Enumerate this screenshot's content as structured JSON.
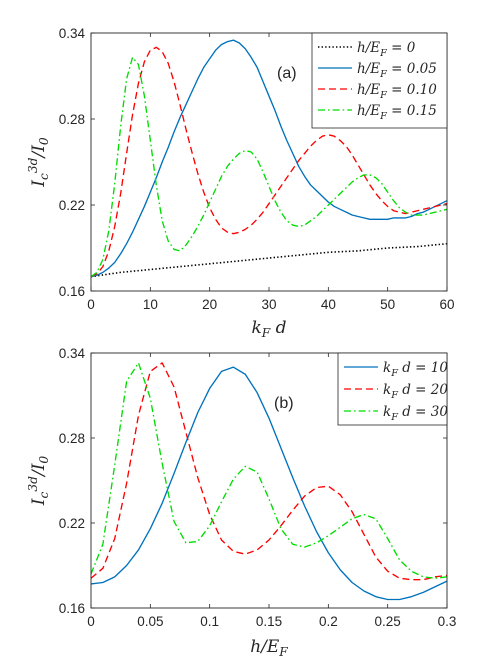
{
  "chart_data": [
    {
      "type": "line",
      "panel_label": "(a)",
      "xlabel": "k_F d",
      "ylabel": "I_c^{3d}/I_0",
      "xlim": [
        0,
        60
      ],
      "ylim": [
        0.16,
        0.34
      ],
      "xticks": [
        0,
        10,
        20,
        30,
        40,
        50,
        60
      ],
      "yticks": [
        0.16,
        0.22,
        0.28,
        0.34
      ],
      "ytick_labels": [
        "0.16",
        "0.22",
        "0.28",
        "0.34"
      ],
      "grid": false,
      "legend_position": "top-right",
      "series": [
        {
          "name": "h/E_F = 0",
          "color": "#000000",
          "style": "dotted",
          "x": [
            0,
            5,
            10,
            15,
            20,
            25,
            30,
            35,
            40,
            45,
            50,
            55,
            60
          ],
          "y": [
            0.17,
            0.173,
            0.175,
            0.177,
            0.179,
            0.181,
            0.183,
            0.185,
            0.187,
            0.188,
            0.19,
            0.191,
            0.193
          ]
        },
        {
          "name": "h/E_F = 0.05",
          "color": "#0072BD",
          "style": "solid",
          "x": [
            0,
            1,
            2,
            3,
            4,
            5,
            6,
            7,
            8,
            9,
            10,
            11,
            12,
            13,
            14,
            15,
            16,
            17,
            18,
            19,
            20,
            21,
            22,
            23,
            24,
            25,
            26,
            27,
            28,
            29,
            30,
            31,
            32,
            33,
            34,
            35,
            36,
            37,
            38,
            39,
            40,
            41,
            42,
            43,
            44,
            45,
            46,
            47,
            48,
            49,
            50,
            51,
            52,
            53,
            54,
            55,
            56,
            57,
            58,
            59,
            60
          ],
          "y": [
            0.17,
            0.171,
            0.173,
            0.176,
            0.18,
            0.186,
            0.193,
            0.201,
            0.21,
            0.219,
            0.229,
            0.239,
            0.25,
            0.26,
            0.271,
            0.281,
            0.29,
            0.299,
            0.308,
            0.316,
            0.322,
            0.328,
            0.332,
            0.334,
            0.335,
            0.333,
            0.329,
            0.323,
            0.316,
            0.306,
            0.296,
            0.286,
            0.275,
            0.265,
            0.256,
            0.247,
            0.24,
            0.234,
            0.23,
            0.226,
            0.222,
            0.219,
            0.217,
            0.215,
            0.213,
            0.212,
            0.211,
            0.21,
            0.21,
            0.21,
            0.21,
            0.211,
            0.211,
            0.211,
            0.212,
            0.214,
            0.215,
            0.217,
            0.219,
            0.221,
            0.223
          ]
        },
        {
          "name": "h/E_F = 0.10",
          "color": "#FF0000",
          "style": "dashed",
          "x": [
            0,
            1,
            2,
            3,
            4,
            5,
            6,
            7,
            8,
            9,
            10,
            11,
            12,
            13,
            14,
            15,
            16,
            17,
            18,
            19,
            20,
            21,
            22,
            23,
            24,
            25,
            26,
            27,
            28,
            29,
            30,
            31,
            32,
            33,
            34,
            35,
            36,
            37,
            38,
            39,
            40,
            41,
            42,
            43,
            44,
            45,
            46,
            47,
            48,
            49,
            50,
            51,
            52,
            53,
            54,
            55,
            56,
            57,
            58,
            59,
            60
          ],
          "y": [
            0.17,
            0.172,
            0.177,
            0.188,
            0.205,
            0.228,
            0.256,
            0.283,
            0.305,
            0.32,
            0.328,
            0.33,
            0.327,
            0.319,
            0.306,
            0.29,
            0.273,
            0.257,
            0.242,
            0.229,
            0.218,
            0.21,
            0.204,
            0.201,
            0.2,
            0.201,
            0.203,
            0.206,
            0.21,
            0.215,
            0.221,
            0.227,
            0.233,
            0.239,
            0.245,
            0.251,
            0.256,
            0.261,
            0.265,
            0.268,
            0.269,
            0.268,
            0.265,
            0.261,
            0.255,
            0.248,
            0.241,
            0.234,
            0.228,
            0.223,
            0.219,
            0.216,
            0.215,
            0.214,
            0.215,
            0.216,
            0.217,
            0.218,
            0.219,
            0.22,
            0.221
          ]
        },
        {
          "name": "h/E_F = 0.15",
          "color": "#00DD00",
          "style": "dashdot",
          "x": [
            0,
            1,
            2,
            3,
            4,
            5,
            6,
            7,
            8,
            9,
            10,
            11,
            12,
            13,
            14,
            15,
            16,
            17,
            18,
            19,
            20,
            21,
            22,
            23,
            24,
            25,
            26,
            27,
            28,
            29,
            30,
            31,
            32,
            33,
            34,
            35,
            36,
            37,
            38,
            39,
            40,
            41,
            42,
            43,
            44,
            45,
            46,
            47,
            48,
            49,
            50,
            51,
            52,
            53,
            54,
            55,
            56,
            57,
            58,
            59,
            60
          ],
          "y": [
            0.17,
            0.173,
            0.182,
            0.202,
            0.235,
            0.275,
            0.308,
            0.323,
            0.318,
            0.296,
            0.265,
            0.234,
            0.209,
            0.195,
            0.189,
            0.188,
            0.192,
            0.198,
            0.205,
            0.213,
            0.222,
            0.231,
            0.24,
            0.247,
            0.252,
            0.256,
            0.258,
            0.257,
            0.252,
            0.243,
            0.233,
            0.223,
            0.215,
            0.209,
            0.206,
            0.205,
            0.206,
            0.209,
            0.212,
            0.216,
            0.22,
            0.224,
            0.228,
            0.232,
            0.236,
            0.239,
            0.241,
            0.241,
            0.239,
            0.235,
            0.229,
            0.223,
            0.218,
            0.215,
            0.213,
            0.213,
            0.213,
            0.214,
            0.215,
            0.216,
            0.217
          ]
        }
      ]
    },
    {
      "type": "line",
      "panel_label": "(b)",
      "xlabel": "h/E_F",
      "ylabel": "I_c^{3d}/I_0",
      "xlim": [
        0,
        0.3
      ],
      "ylim": [
        0.16,
        0.34
      ],
      "xticks": [
        0,
        0.05,
        0.1,
        0.15,
        0.2,
        0.25,
        0.3
      ],
      "xtick_labels": [
        "0",
        "0.05",
        "0.1",
        "0.15",
        "0.2",
        "0.25",
        "0.3"
      ],
      "yticks": [
        0.16,
        0.22,
        0.28,
        0.34
      ],
      "ytick_labels": [
        "0.16",
        "0.22",
        "0.28",
        "0.34"
      ],
      "grid": false,
      "legend_position": "top-right",
      "series": [
        {
          "name": "k_F d = 10",
          "color": "#0072BD",
          "style": "solid",
          "x": [
            0,
            0.01,
            0.02,
            0.03,
            0.04,
            0.05,
            0.06,
            0.07,
            0.08,
            0.09,
            0.1,
            0.11,
            0.12,
            0.13,
            0.14,
            0.15,
            0.16,
            0.17,
            0.18,
            0.19,
            0.2,
            0.21,
            0.22,
            0.23,
            0.24,
            0.25,
            0.26,
            0.27,
            0.28,
            0.29,
            0.3
          ],
          "y": [
            0.177,
            0.178,
            0.182,
            0.19,
            0.201,
            0.216,
            0.234,
            0.255,
            0.277,
            0.298,
            0.315,
            0.327,
            0.33,
            0.325,
            0.312,
            0.294,
            0.273,
            0.252,
            0.232,
            0.214,
            0.199,
            0.187,
            0.178,
            0.172,
            0.168,
            0.166,
            0.166,
            0.168,
            0.171,
            0.175,
            0.179
          ]
        },
        {
          "name": "k_F d = 20",
          "color": "#FF0000",
          "style": "dashed",
          "x": [
            0,
            0.01,
            0.02,
            0.03,
            0.04,
            0.05,
            0.06,
            0.07,
            0.08,
            0.09,
            0.1,
            0.11,
            0.12,
            0.13,
            0.14,
            0.15,
            0.16,
            0.17,
            0.18,
            0.19,
            0.2,
            0.21,
            0.22,
            0.23,
            0.24,
            0.25,
            0.26,
            0.27,
            0.28,
            0.29,
            0.3
          ],
          "y": [
            0.181,
            0.188,
            0.209,
            0.248,
            0.296,
            0.327,
            0.333,
            0.316,
            0.284,
            0.252,
            0.226,
            0.208,
            0.2,
            0.198,
            0.201,
            0.208,
            0.218,
            0.229,
            0.239,
            0.245,
            0.246,
            0.24,
            0.228,
            0.212,
            0.196,
            0.186,
            0.181,
            0.18,
            0.18,
            0.182,
            0.183
          ]
        },
        {
          "name": "k_F d = 30",
          "color": "#00DD00",
          "style": "dashdot",
          "x": [
            0,
            0.01,
            0.02,
            0.03,
            0.04,
            0.05,
            0.06,
            0.07,
            0.08,
            0.09,
            0.1,
            0.11,
            0.12,
            0.13,
            0.14,
            0.15,
            0.16,
            0.17,
            0.18,
            0.19,
            0.2,
            0.21,
            0.22,
            0.23,
            0.24,
            0.25,
            0.26,
            0.27,
            0.28,
            0.29,
            0.3
          ],
          "y": [
            0.184,
            0.205,
            0.261,
            0.32,
            0.333,
            0.308,
            0.262,
            0.221,
            0.206,
            0.207,
            0.218,
            0.235,
            0.251,
            0.26,
            0.256,
            0.237,
            0.216,
            0.205,
            0.203,
            0.206,
            0.211,
            0.217,
            0.223,
            0.226,
            0.223,
            0.209,
            0.194,
            0.186,
            0.182,
            0.181,
            0.182
          ]
        }
      ]
    }
  ]
}
